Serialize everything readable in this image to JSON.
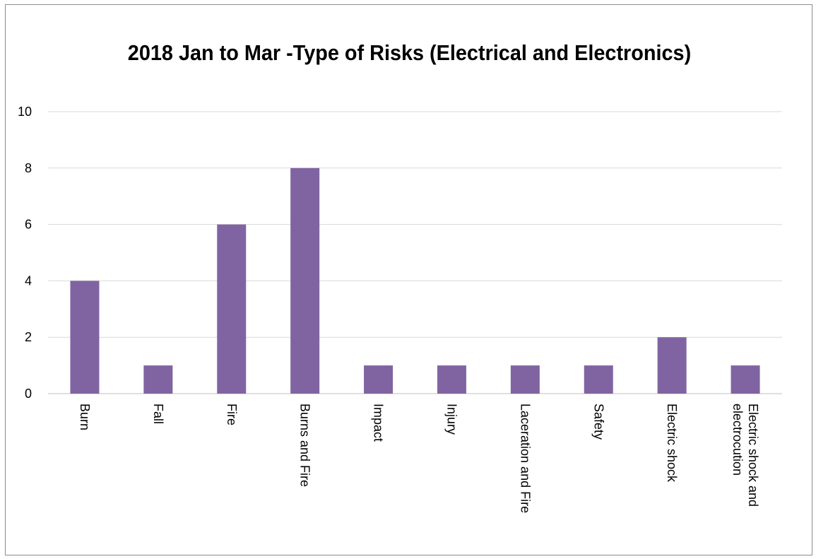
{
  "chart_data": {
    "type": "bar",
    "title": "2018 Jan to Mar -Type of Risks (Electrical and Electronics)",
    "categories": [
      "Burn",
      "Fall",
      "Fire",
      "Burns and Fire",
      "Impact",
      "Injury",
      "Laceration and Fire",
      "Safety",
      "Electric shock",
      "Electric shock and electrocution"
    ],
    "series": [
      {
        "values": [
          4,
          1,
          6,
          8,
          1,
          1,
          1,
          1,
          2,
          1
        ]
      }
    ],
    "xlabel": "",
    "ylabel": "",
    "ylim": [
      0,
      10
    ],
    "yticks": [
      0,
      2,
      4,
      6,
      8,
      10
    ],
    "grid": true,
    "legend": "none",
    "bar_color": "#8064A2",
    "grid_color": "#d9d9d9"
  }
}
